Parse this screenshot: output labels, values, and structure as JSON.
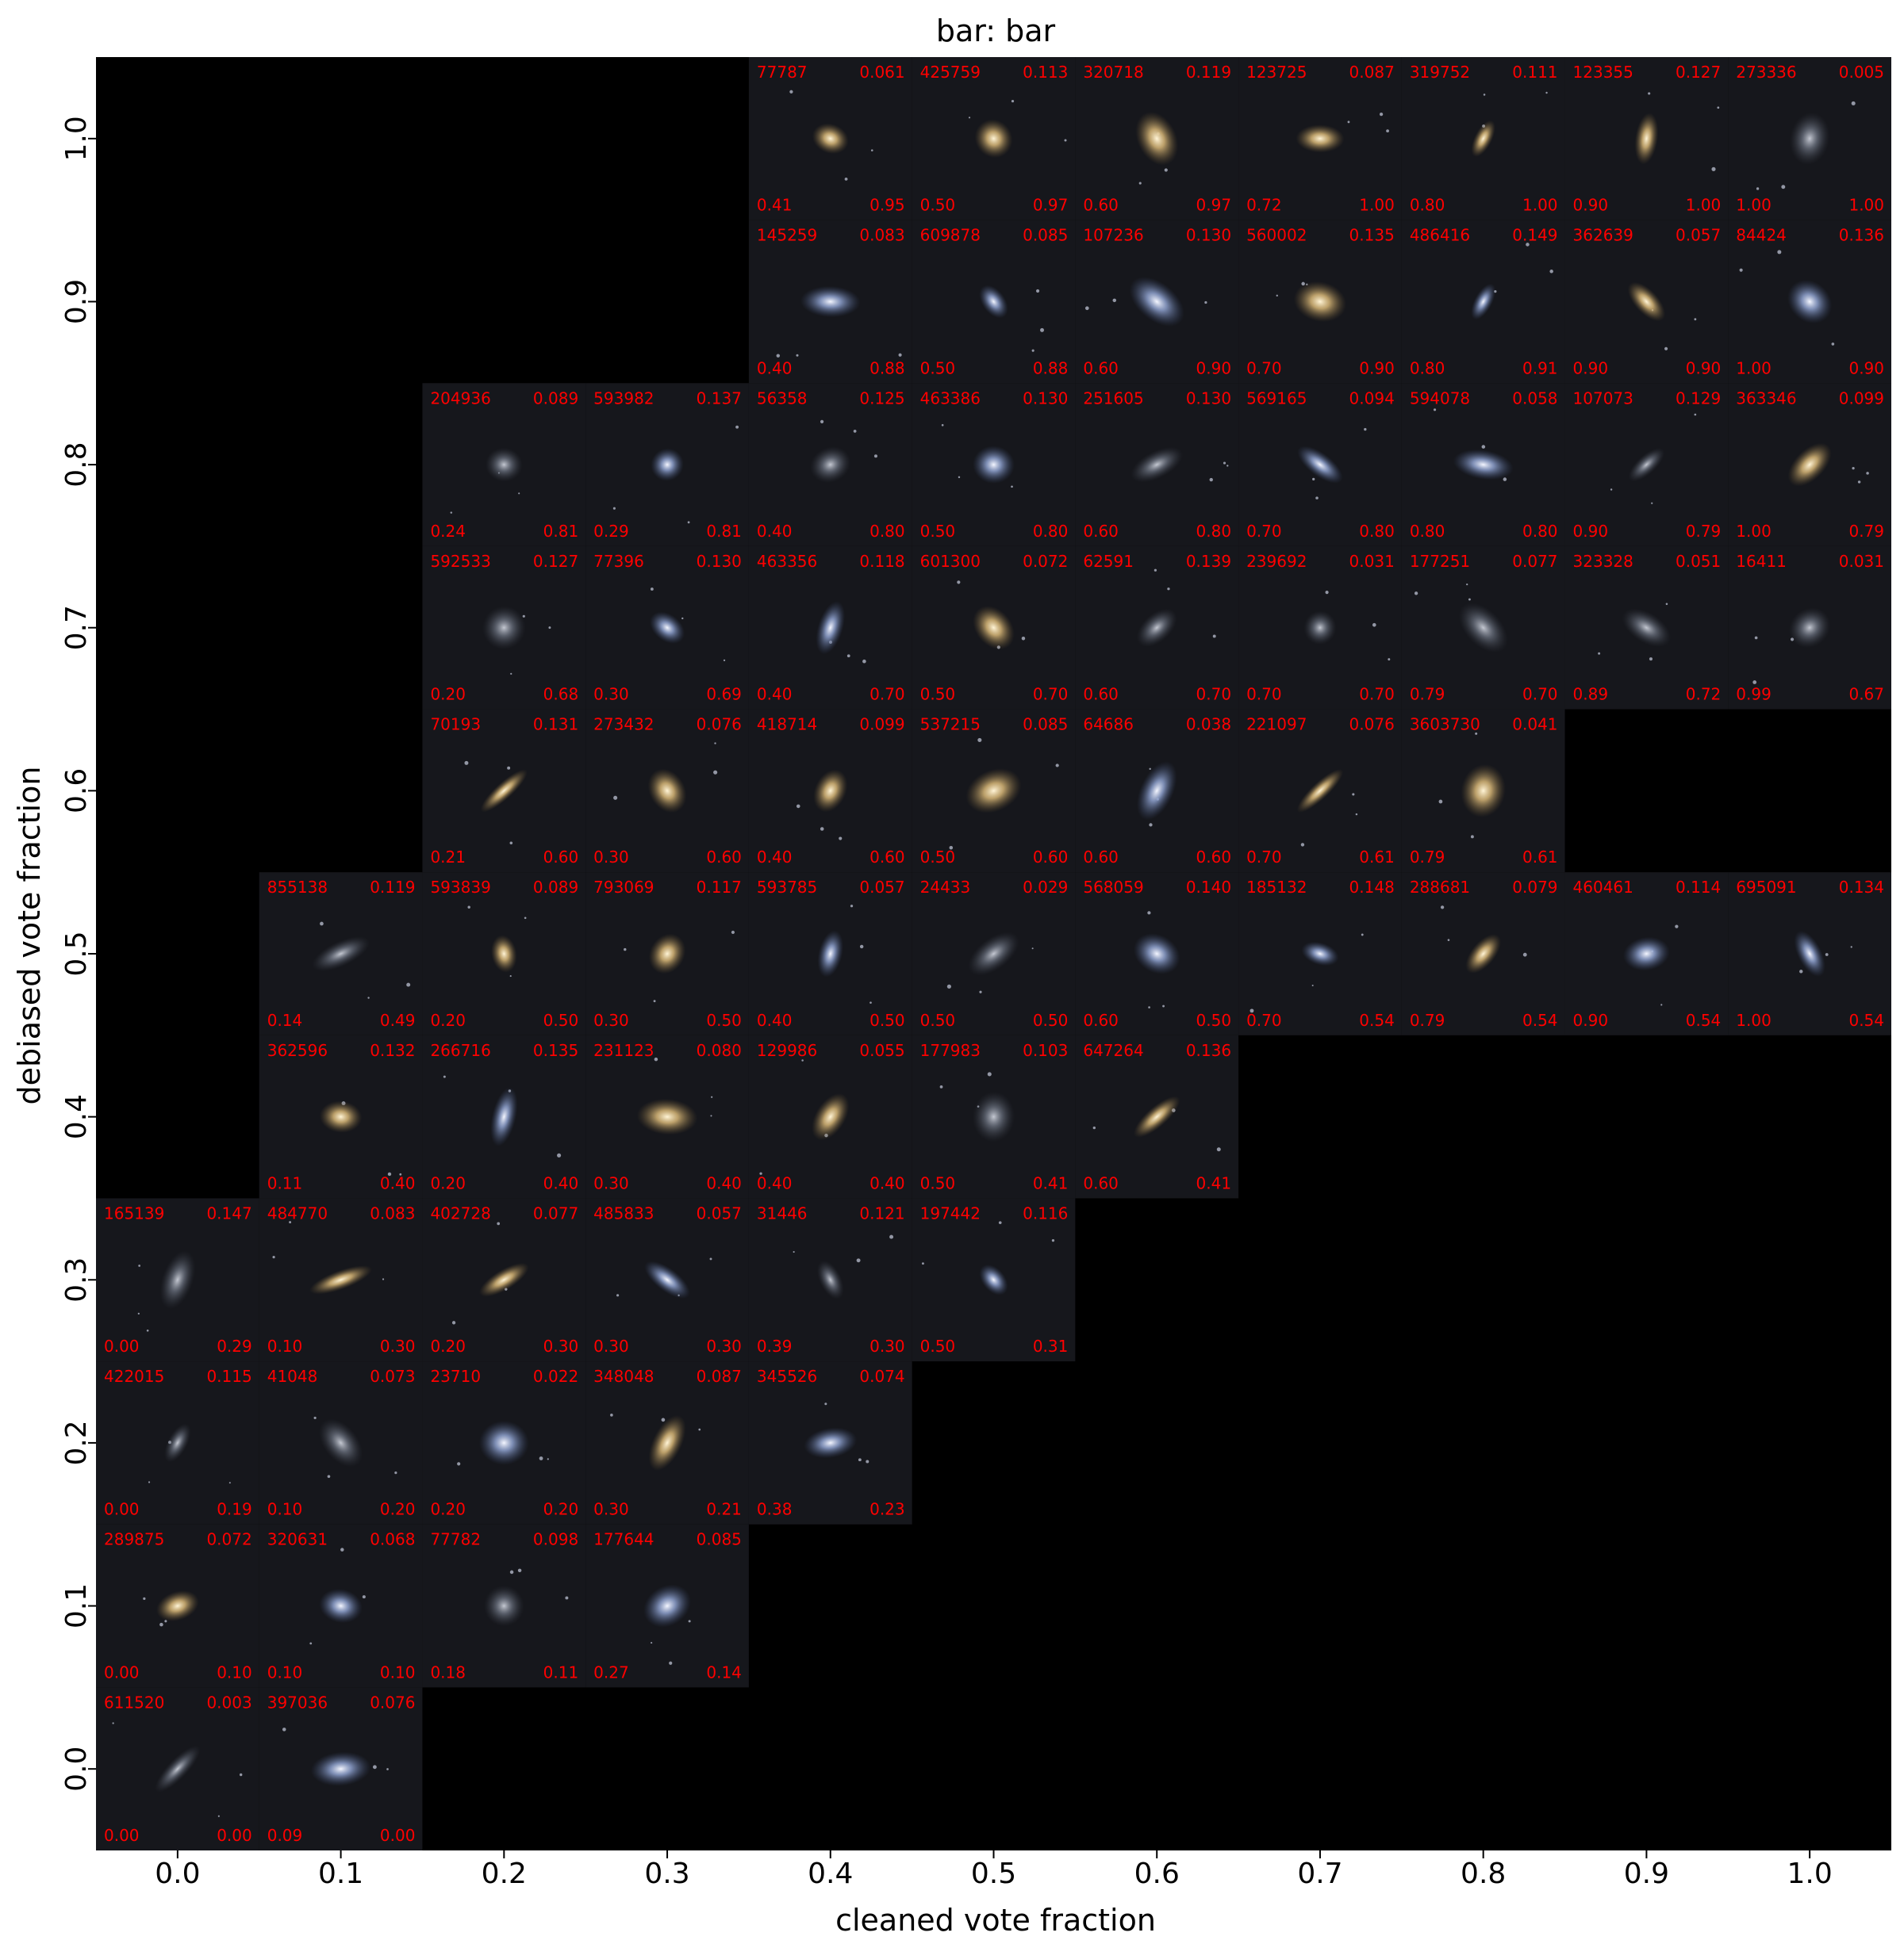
{
  "chart_data": {
    "type": "image-grid",
    "title": "bar: bar",
    "xlabel": "cleaned vote fraction",
    "ylabel": "debiased vote fraction",
    "xlim": [
      -0.05,
      1.05
    ],
    "ylim": [
      -0.05,
      1.05
    ],
    "xticks": [
      "0.0",
      "0.1",
      "0.2",
      "0.3",
      "0.4",
      "0.5",
      "0.6",
      "0.7",
      "0.8",
      "0.9",
      "1.0"
    ],
    "yticks": [
      "0.0",
      "0.1",
      "0.2",
      "0.3",
      "0.4",
      "0.5",
      "0.6",
      "0.7",
      "0.8",
      "0.9",
      "1.0"
    ],
    "grid": false,
    "tile_fields": [
      "id",
      "value_top_right",
      "cleaned_vote_fraction",
      "debiased_vote_fraction"
    ],
    "tiles": [
      {
        "col": 4,
        "row": 10,
        "id": "77787",
        "tr": "0.061",
        "bl": "0.41",
        "br": "0.95"
      },
      {
        "col": 5,
        "row": 10,
        "id": "425759",
        "tr": "0.113",
        "bl": "0.50",
        "br": "0.97"
      },
      {
        "col": 6,
        "row": 10,
        "id": "320718",
        "tr": "0.119",
        "bl": "0.60",
        "br": "0.97"
      },
      {
        "col": 7,
        "row": 10,
        "id": "123725",
        "tr": "0.087",
        "bl": "0.72",
        "br": "1.00"
      },
      {
        "col": 8,
        "row": 10,
        "id": "319752",
        "tr": "0.111",
        "bl": "0.80",
        "br": "1.00"
      },
      {
        "col": 9,
        "row": 10,
        "id": "123355",
        "tr": "0.127",
        "bl": "0.90",
        "br": "1.00"
      },
      {
        "col": 10,
        "row": 10,
        "id": "273336",
        "tr": "0.005",
        "bl": "1.00",
        "br": "1.00"
      },
      {
        "col": 4,
        "row": 9,
        "id": "145259",
        "tr": "0.083",
        "bl": "0.40",
        "br": "0.88"
      },
      {
        "col": 5,
        "row": 9,
        "id": "609878",
        "tr": "0.085",
        "bl": "0.50",
        "br": "0.88"
      },
      {
        "col": 6,
        "row": 9,
        "id": "107236",
        "tr": "0.130",
        "bl": "0.60",
        "br": "0.90"
      },
      {
        "col": 7,
        "row": 9,
        "id": "560002",
        "tr": "0.135",
        "bl": "0.70",
        "br": "0.90"
      },
      {
        "col": 8,
        "row": 9,
        "id": "486416",
        "tr": "0.149",
        "bl": "0.80",
        "br": "0.91"
      },
      {
        "col": 9,
        "row": 9,
        "id": "362639",
        "tr": "0.057",
        "bl": "0.90",
        "br": "0.90"
      },
      {
        "col": 10,
        "row": 9,
        "id": "84424",
        "tr": "0.136",
        "bl": "1.00",
        "br": "0.90"
      },
      {
        "col": 2,
        "row": 8,
        "id": "204936",
        "tr": "0.089",
        "bl": "0.24",
        "br": "0.81"
      },
      {
        "col": 3,
        "row": 8,
        "id": "593982",
        "tr": "0.137",
        "bl": "0.29",
        "br": "0.81"
      },
      {
        "col": 4,
        "row": 8,
        "id": "56358",
        "tr": "0.125",
        "bl": "0.40",
        "br": "0.80"
      },
      {
        "col": 5,
        "row": 8,
        "id": "463386",
        "tr": "0.130",
        "bl": "0.50",
        "br": "0.80"
      },
      {
        "col": 6,
        "row": 8,
        "id": "251605",
        "tr": "0.130",
        "bl": "0.60",
        "br": "0.80"
      },
      {
        "col": 7,
        "row": 8,
        "id": "569165",
        "tr": "0.094",
        "bl": "0.70",
        "br": "0.80"
      },
      {
        "col": 8,
        "row": 8,
        "id": "594078",
        "tr": "0.058",
        "bl": "0.80",
        "br": "0.80"
      },
      {
        "col": 9,
        "row": 8,
        "id": "107073",
        "tr": "0.129",
        "bl": "0.90",
        "br": "0.79"
      },
      {
        "col": 10,
        "row": 8,
        "id": "363346",
        "tr": "0.099",
        "bl": "1.00",
        "br": "0.79"
      },
      {
        "col": 2,
        "row": 7,
        "id": "592533",
        "tr": "0.127",
        "bl": "0.20",
        "br": "0.68"
      },
      {
        "col": 3,
        "row": 7,
        "id": "77396",
        "tr": "0.130",
        "bl": "0.30",
        "br": "0.69"
      },
      {
        "col": 4,
        "row": 7,
        "id": "463356",
        "tr": "0.118",
        "bl": "0.40",
        "br": "0.70"
      },
      {
        "col": 5,
        "row": 7,
        "id": "601300",
        "tr": "0.072",
        "bl": "0.50",
        "br": "0.70"
      },
      {
        "col": 6,
        "row": 7,
        "id": "62591",
        "tr": "0.139",
        "bl": "0.60",
        "br": "0.70"
      },
      {
        "col": 7,
        "row": 7,
        "id": "239692",
        "tr": "0.031",
        "bl": "0.70",
        "br": "0.70"
      },
      {
        "col": 8,
        "row": 7,
        "id": "177251",
        "tr": "0.077",
        "bl": "0.79",
        "br": "0.70"
      },
      {
        "col": 9,
        "row": 7,
        "id": "323328",
        "tr": "0.051",
        "bl": "0.89",
        "br": "0.72"
      },
      {
        "col": 10,
        "row": 7,
        "id": "16411",
        "tr": "0.031",
        "bl": "0.99",
        "br": "0.67"
      },
      {
        "col": 2,
        "row": 6,
        "id": "70193",
        "tr": "0.131",
        "bl": "0.21",
        "br": "0.60"
      },
      {
        "col": 3,
        "row": 6,
        "id": "273432",
        "tr": "0.076",
        "bl": "0.30",
        "br": "0.60"
      },
      {
        "col": 4,
        "row": 6,
        "id": "418714",
        "tr": "0.099",
        "bl": "0.40",
        "br": "0.60"
      },
      {
        "col": 5,
        "row": 6,
        "id": "537215",
        "tr": "0.085",
        "bl": "0.50",
        "br": "0.60"
      },
      {
        "col": 6,
        "row": 6,
        "id": "64686",
        "tr": "0.038",
        "bl": "0.60",
        "br": "0.60"
      },
      {
        "col": 7,
        "row": 6,
        "id": "221097",
        "tr": "0.076",
        "bl": "0.70",
        "br": "0.61"
      },
      {
        "col": 8,
        "row": 6,
        "id": "3603730",
        "tr": "0.041",
        "bl": "0.79",
        "br": "0.61"
      },
      {
        "col": 1,
        "row": 5,
        "id": "855138",
        "tr": "0.119",
        "bl": "0.14",
        "br": "0.49"
      },
      {
        "col": 2,
        "row": 5,
        "id": "593839",
        "tr": "0.089",
        "bl": "0.20",
        "br": "0.50"
      },
      {
        "col": 3,
        "row": 5,
        "id": "793069",
        "tr": "0.117",
        "bl": "0.30",
        "br": "0.50"
      },
      {
        "col": 4,
        "row": 5,
        "id": "593785",
        "tr": "0.057",
        "bl": "0.40",
        "br": "0.50"
      },
      {
        "col": 5,
        "row": 5,
        "id": "24433",
        "tr": "0.029",
        "bl": "0.50",
        "br": "0.50"
      },
      {
        "col": 6,
        "row": 5,
        "id": "568059",
        "tr": "0.140",
        "bl": "0.60",
        "br": "0.50"
      },
      {
        "col": 7,
        "row": 5,
        "id": "185132",
        "tr": "0.148",
        "bl": "0.70",
        "br": "0.54"
      },
      {
        "col": 8,
        "row": 5,
        "id": "288681",
        "tr": "0.079",
        "bl": "0.79",
        "br": "0.54"
      },
      {
        "col": 9,
        "row": 5,
        "id": "460461",
        "tr": "0.114",
        "bl": "0.90",
        "br": "0.54"
      },
      {
        "col": 10,
        "row": 5,
        "id": "695091",
        "tr": "0.134",
        "bl": "1.00",
        "br": "0.54"
      },
      {
        "col": 1,
        "row": 4,
        "id": "362596",
        "tr": "0.132",
        "bl": "0.11",
        "br": "0.40"
      },
      {
        "col": 2,
        "row": 4,
        "id": "266716",
        "tr": "0.135",
        "bl": "0.20",
        "br": "0.40"
      },
      {
        "col": 3,
        "row": 4,
        "id": "231123",
        "tr": "0.080",
        "bl": "0.30",
        "br": "0.40"
      },
      {
        "col": 4,
        "row": 4,
        "id": "129986",
        "tr": "0.055",
        "bl": "0.40",
        "br": "0.40"
      },
      {
        "col": 5,
        "row": 4,
        "id": "177983",
        "tr": "0.103",
        "bl": "0.50",
        "br": "0.41"
      },
      {
        "col": 6,
        "row": 4,
        "id": "647264",
        "tr": "0.136",
        "bl": "0.60",
        "br": "0.41"
      },
      {
        "col": 0,
        "row": 3,
        "id": "165139",
        "tr": "0.147",
        "bl": "0.00",
        "br": "0.29"
      },
      {
        "col": 1,
        "row": 3,
        "id": "484770",
        "tr": "0.083",
        "bl": "0.10",
        "br": "0.30"
      },
      {
        "col": 2,
        "row": 3,
        "id": "402728",
        "tr": "0.077",
        "bl": "0.20",
        "br": "0.30"
      },
      {
        "col": 3,
        "row": 3,
        "id": "485833",
        "tr": "0.057",
        "bl": "0.30",
        "br": "0.30"
      },
      {
        "col": 4,
        "row": 3,
        "id": "31446",
        "tr": "0.121",
        "bl": "0.39",
        "br": "0.30"
      },
      {
        "col": 5,
        "row": 3,
        "id": "197442",
        "tr": "0.116",
        "bl": "0.50",
        "br": "0.31"
      },
      {
        "col": 0,
        "row": 2,
        "id": "422015",
        "tr": "0.115",
        "bl": "0.00",
        "br": "0.19"
      },
      {
        "col": 1,
        "row": 2,
        "id": "41048",
        "tr": "0.073",
        "bl": "0.10",
        "br": "0.20"
      },
      {
        "col": 2,
        "row": 2,
        "id": "23710",
        "tr": "0.022",
        "bl": "0.20",
        "br": "0.20"
      },
      {
        "col": 3,
        "row": 2,
        "id": "348048",
        "tr": "0.087",
        "bl": "0.30",
        "br": "0.21"
      },
      {
        "col": 4,
        "row": 2,
        "id": "345526",
        "tr": "0.074",
        "bl": "0.38",
        "br": "0.23"
      },
      {
        "col": 0,
        "row": 1,
        "id": "289875",
        "tr": "0.072",
        "bl": "0.00",
        "br": "0.10"
      },
      {
        "col": 1,
        "row": 1,
        "id": "320631",
        "tr": "0.068",
        "bl": "0.10",
        "br": "0.10"
      },
      {
        "col": 2,
        "row": 1,
        "id": "77782",
        "tr": "0.098",
        "bl": "0.18",
        "br": "0.11"
      },
      {
        "col": 3,
        "row": 1,
        "id": "177644",
        "tr": "0.085",
        "bl": "0.27",
        "br": "0.14"
      },
      {
        "col": 0,
        "row": 0,
        "id": "611520",
        "tr": "0.003",
        "bl": "0.00",
        "br": "0.00"
      },
      {
        "col": 1,
        "row": 0,
        "id": "397036",
        "tr": "0.076",
        "bl": "0.09",
        "br": "0.00"
      }
    ]
  }
}
